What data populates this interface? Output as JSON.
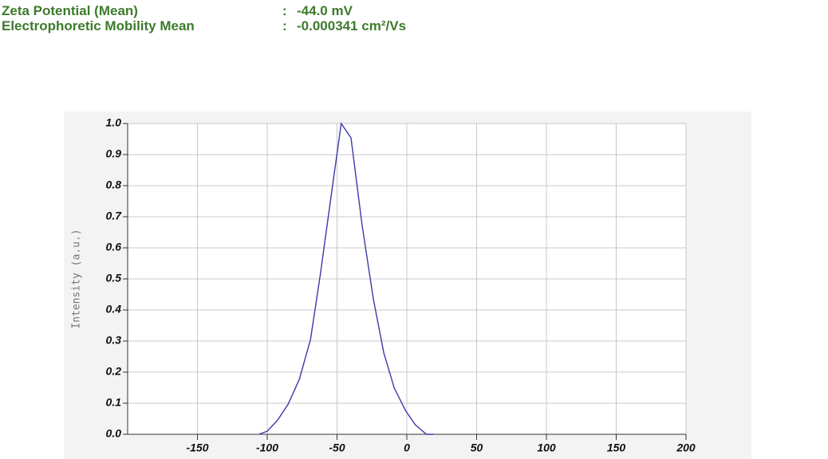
{
  "header": {
    "rows": [
      {
        "label": "Zeta Potential (Mean)",
        "separator": ":",
        "value": "-44.0 mV"
      },
      {
        "label": "Electrophoretic Mobility Mean",
        "separator": ":",
        "value": "-0.000341 cm²/Vs"
      }
    ]
  },
  "chart_data": {
    "type": "line",
    "y_label": "Intensity (a.u.)",
    "x": [
      -106,
      -100,
      -92.5,
      -85,
      -77,
      -69,
      -62,
      -54,
      -47,
      -40,
      -32,
      -24,
      -16.5,
      -9,
      -1,
      6,
      14,
      19
    ],
    "series": [
      {
        "name": null,
        "color": "#3a3aaa",
        "values": [
          0,
          0.01,
          0.046,
          0.097,
          0.177,
          0.305,
          0.513,
          0.774,
          1.0,
          0.954,
          0.672,
          0.436,
          0.262,
          0.149,
          0.077,
          0.031,
          0,
          0
        ]
      }
    ],
    "xlim": [
      -200,
      200
    ],
    "xticks": [
      -150,
      -100,
      -50,
      0,
      50,
      100,
      150,
      200
    ],
    "ylim": [
      0,
      1
    ],
    "yticks": [
      {
        "value": 0,
        "label": "0.0"
      },
      0.1,
      0.2,
      0.3,
      0.4,
      0.5,
      0.6,
      0.7,
      0.8,
      0.9,
      {
        "value": 1,
        "label": "1.0"
      }
    ],
    "grid": true
  }
}
